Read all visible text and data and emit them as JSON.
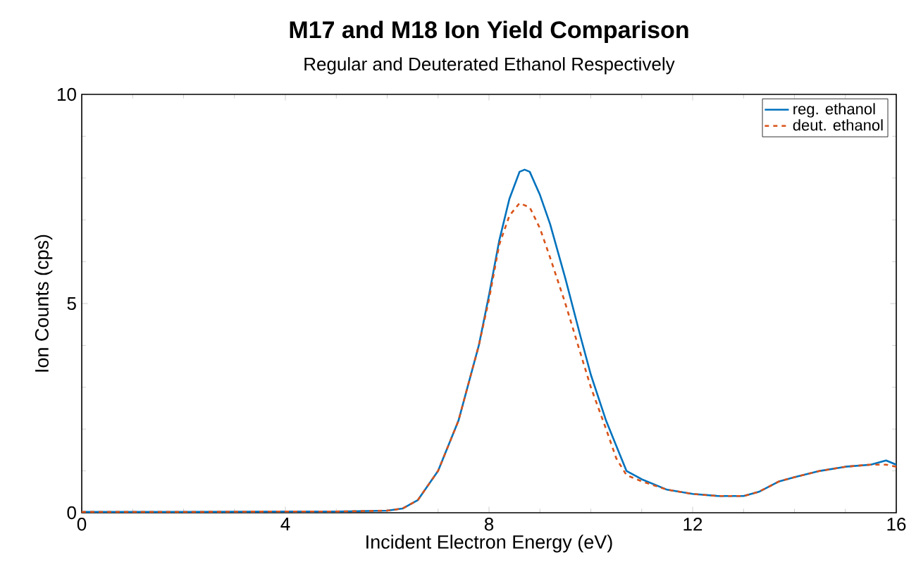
{
  "chart_data": {
    "type": "line",
    "title": "M17 and M18 Ion Yield Comparison",
    "subtitle": "Regular and Deuterated Ethanol Respectively",
    "xlabel": "Incident Electron Energy (eV)",
    "ylabel": "Ion Counts (cps)",
    "xlim": [
      0,
      16
    ],
    "ylim": [
      0,
      10
    ],
    "xticks": [
      0,
      4,
      8,
      12,
      16
    ],
    "yticks": [
      0,
      5,
      10
    ],
    "legend": "top right",
    "series": [
      {
        "name": "reg. ethanol",
        "color": "#0072bd",
        "line_style": "solid",
        "x": [
          0,
          2,
          4,
          5,
          6,
          6.3,
          6.6,
          7.0,
          7.4,
          7.8,
          8.0,
          8.2,
          8.4,
          8.6,
          8.7,
          8.8,
          9.0,
          9.2,
          9.5,
          9.8,
          10.0,
          10.3,
          10.5,
          10.7,
          11.0,
          11.5,
          12.0,
          12.5,
          13.0,
          13.3,
          13.7,
          14.0,
          14.5,
          15.0,
          15.5,
          15.8,
          16.0
        ],
        "values": [
          0.02,
          0.02,
          0.03,
          0.03,
          0.05,
          0.1,
          0.3,
          1.0,
          2.2,
          4.0,
          5.2,
          6.5,
          7.5,
          8.15,
          8.2,
          8.15,
          7.6,
          6.9,
          5.6,
          4.2,
          3.3,
          2.2,
          1.6,
          1.0,
          0.8,
          0.55,
          0.45,
          0.4,
          0.4,
          0.5,
          0.75,
          0.85,
          1.0,
          1.1,
          1.15,
          1.25,
          1.15
        ]
      },
      {
        "name": "deut. ethanol",
        "color": "#d95319",
        "line_style": "dashed",
        "x": [
          0,
          2,
          4,
          5,
          6,
          6.3,
          6.6,
          7.0,
          7.4,
          7.8,
          8.0,
          8.2,
          8.4,
          8.6,
          8.8,
          9.0,
          9.2,
          9.5,
          9.8,
          10.0,
          10.3,
          10.5,
          10.7,
          11.0,
          11.5,
          12.0,
          12.5,
          13.0,
          13.3,
          13.7,
          14.0,
          14.5,
          15.0,
          15.5,
          15.8,
          16.0
        ],
        "values": [
          0.02,
          0.02,
          0.03,
          0.03,
          0.05,
          0.1,
          0.3,
          1.0,
          2.2,
          4.0,
          5.1,
          6.4,
          7.1,
          7.4,
          7.3,
          6.8,
          6.1,
          5.0,
          3.8,
          3.0,
          2.0,
          1.3,
          0.9,
          0.75,
          0.55,
          0.45,
          0.4,
          0.4,
          0.5,
          0.75,
          0.85,
          1.0,
          1.1,
          1.15,
          1.15,
          1.1
        ]
      }
    ]
  }
}
